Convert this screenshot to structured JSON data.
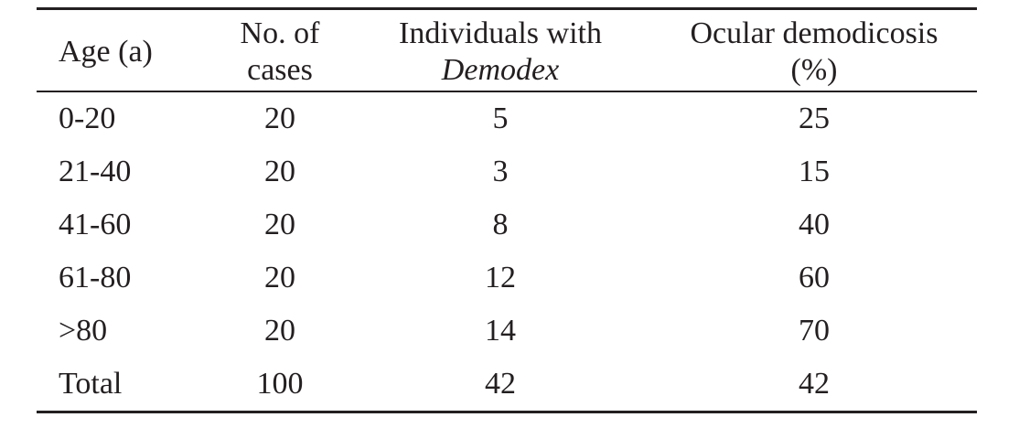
{
  "table": {
    "headers": [
      {
        "lines": [
          "Age (a)"
        ]
      },
      {
        "lines": [
          "No. of",
          "cases"
        ]
      },
      {
        "lines": [
          "Individuals with",
          "Demodex"
        ]
      },
      {
        "lines": [
          "Ocular demodicosis",
          "(%)"
        ]
      }
    ],
    "rows": [
      [
        "0-20",
        "20",
        "5",
        "25"
      ],
      [
        "21-40",
        "20",
        "3",
        "15"
      ],
      [
        "41-60",
        "20",
        "8",
        "40"
      ],
      [
        "61-80",
        "20",
        "12",
        "60"
      ],
      [
        ">80",
        "20",
        "14",
        "70"
      ],
      [
        "Total",
        "100",
        "42",
        "42"
      ]
    ]
  }
}
